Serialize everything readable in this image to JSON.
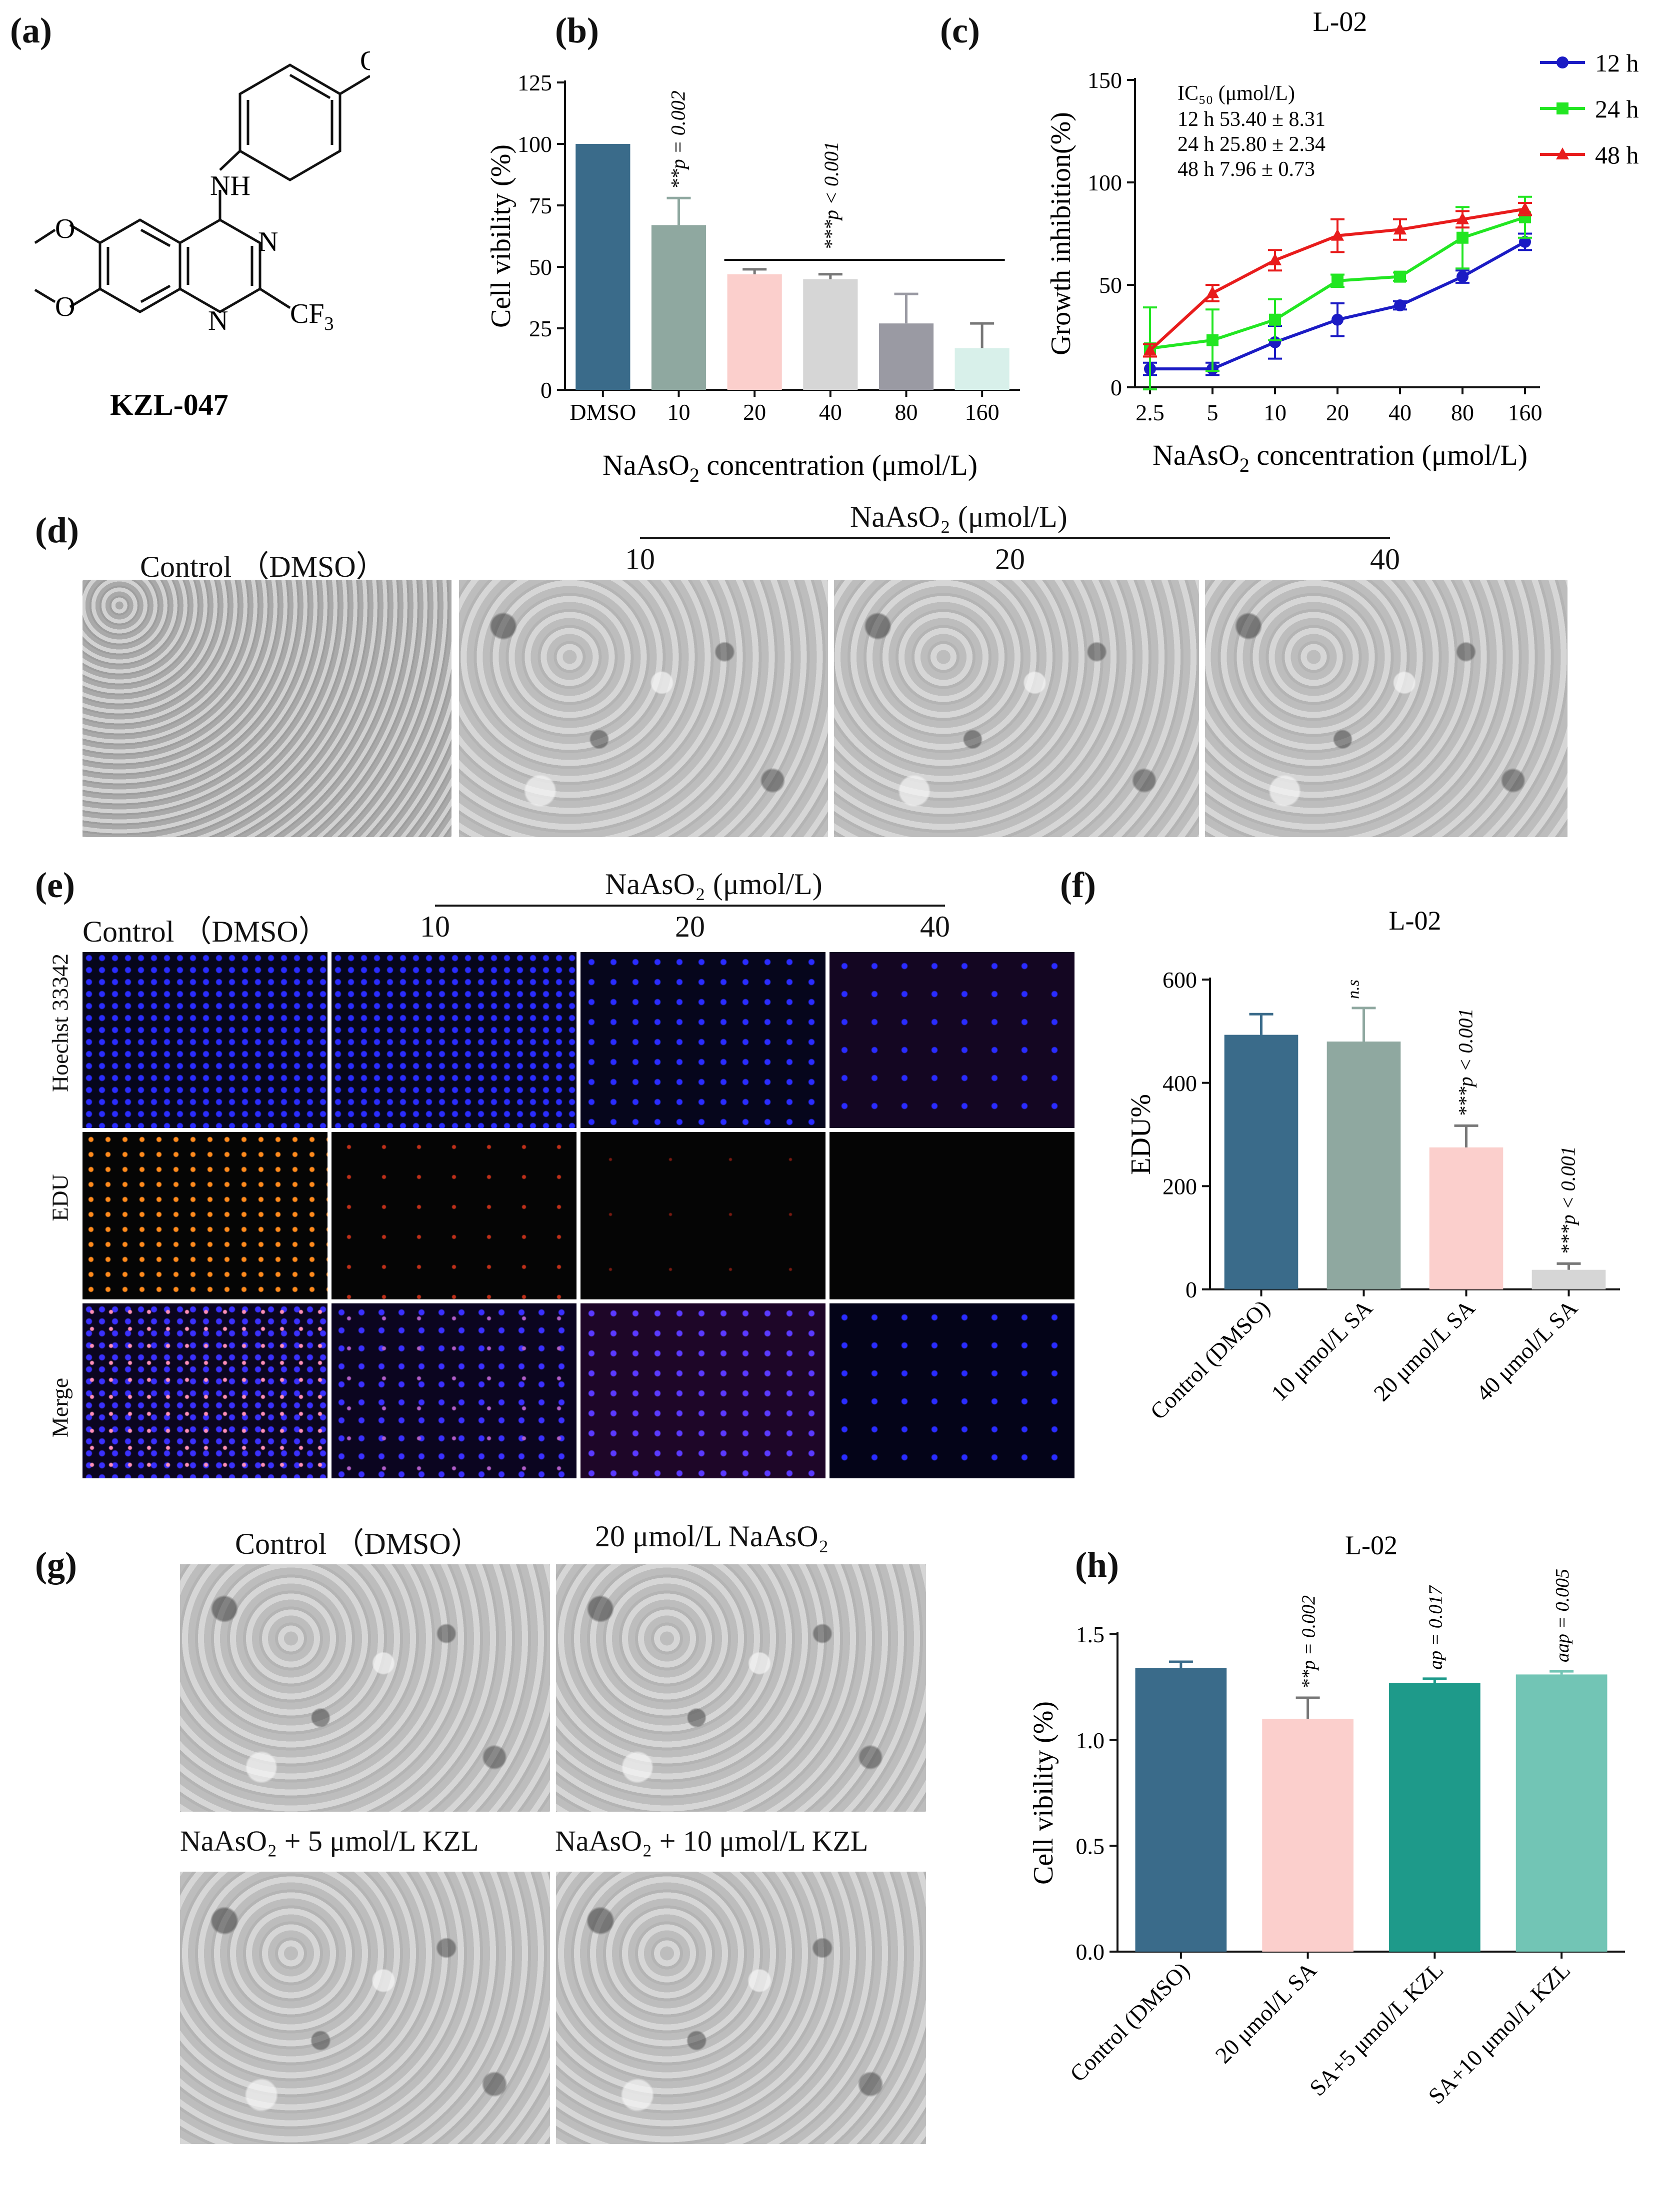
{
  "panels": {
    "a": {
      "label": "a",
      "compound": "KZL-047",
      "atoms": {
        "nh": "NH",
        "n1": "N",
        "n2": "N",
        "cf3": "CF",
        "cf3_sub": "3"
      }
    },
    "b": {
      "label": "b",
      "xlabel": "NaAsO",
      "xlabel_sub": "2",
      "xlabel_tail": " concentration (μmol/L)",
      "ylabel": "Cell vibility  (%)",
      "sig1": "**p = 0.002",
      "sig2": "***p < 0.001"
    },
    "c": {
      "label": "c",
      "title": "L-02",
      "xlabel": "NaAsO",
      "xlabel_sub": "2",
      "xlabel_tail": " concentration (μmol/L)",
      "ylabel": "Growth inhibition(%)",
      "ic50_title": "IC₅₀ (μmol/L)",
      "ic50_lines": [
        "12 h 53.40 ± 8.31",
        "24 h 25.80 ± 2.34",
        "48 h 7.96 ± 0.73"
      ]
    },
    "d": {
      "label": "d",
      "control": "Control  （DMSO）",
      "treat_title": "NaAsO₂ (μmol/L)",
      "doses": [
        "10",
        "20",
        "40"
      ]
    },
    "e": {
      "label": "e",
      "control": "Control  （DMSO）",
      "treat_title": "NaAsO₂ (μmol/L)",
      "doses": [
        "10",
        "20",
        "40"
      ],
      "rows": [
        "Hoechst 33342",
        "EDU",
        "Merge"
      ]
    },
    "f": {
      "label": "f",
      "title": "L-02",
      "ylabel": "EDU%",
      "sig1": "n.s",
      "sig2": "***p < 0.001",
      "sig3": "***p < 0.001"
    },
    "g": {
      "label": "g",
      "captions": [
        "Control  （DMSO）",
        "20 μmol/L NaAsO₂",
        "NaAsO₂ + 5 μmol/L KZL",
        "NaAsO₂ + 10 μmol/L KZL"
      ]
    },
    "h": {
      "label": "h",
      "title": "L-02",
      "ylabel": "Cell vibility  (%)",
      "sig1": "**p = 0.002",
      "sig2": "ap = 0.017",
      "sig3": "aap = 0.005"
    }
  },
  "chart_data": [
    {
      "id": "b",
      "type": "bar",
      "categories": [
        "DMSO",
        "10",
        "20",
        "40",
        "80",
        "160"
      ],
      "values": [
        100,
        67,
        47,
        45,
        27,
        17
      ],
      "errors": [
        0,
        11,
        2,
        2,
        12,
        10
      ],
      "ylim": [
        0,
        125
      ],
      "yticks": [
        0,
        25,
        50,
        75,
        100,
        125
      ],
      "colors": [
        "#3a6b8a",
        "#8fa8a0",
        "#fbcfcc",
        "#d6d6d6",
        "#9a9aa3",
        "#d8f0ea"
      ]
    },
    {
      "id": "c",
      "type": "line",
      "x": [
        "2.5",
        "5",
        "10",
        "20",
        "40",
        "80",
        "160"
      ],
      "ylim": [
        0,
        150
      ],
      "yticks": [
        0,
        50,
        100,
        150
      ],
      "series": [
        {
          "name": "12 h",
          "color": "#1b1bc4",
          "marker": "circle",
          "values": [
            9,
            9,
            22,
            33,
            40,
            54,
            71
          ],
          "errors": [
            3,
            3,
            8,
            8,
            2,
            3,
            4
          ]
        },
        {
          "name": "24 h",
          "color": "#22e622",
          "marker": "square",
          "values": [
            19,
            23,
            33,
            52,
            54,
            73,
            83
          ],
          "errors": [
            20,
            15,
            10,
            3,
            2,
            15,
            10
          ]
        },
        {
          "name": "48 h",
          "color": "#e81c1c",
          "marker": "triangle",
          "values": [
            18,
            46,
            62,
            74,
            77,
            82,
            87
          ],
          "errors": [
            3,
            4,
            5,
            8,
            5,
            4,
            3
          ]
        }
      ]
    },
    {
      "id": "f",
      "type": "bar",
      "categories": [
        "Control (DMSO)",
        "10 μmol/L SA",
        "20 μmol/L SA",
        "40 μmol/L SA"
      ],
      "values": [
        493,
        480,
        275,
        38
      ],
      "errors": [
        40,
        65,
        42,
        12
      ],
      "ylim": [
        0,
        600
      ],
      "yticks": [
        0,
        200,
        400,
        600
      ],
      "colors": [
        "#3a6b8a",
        "#8fa8a0",
        "#fbcfcc",
        "#d6d6d6"
      ]
    },
    {
      "id": "h",
      "type": "bar",
      "categories": [
        "Control (DMSO)",
        "20 μmol/L SA",
        "SA+5 μmol/L KZL",
        "SA+10 μmol/L KZL"
      ],
      "values": [
        1.34,
        1.1,
        1.27,
        1.31
      ],
      "errors": [
        0.03,
        0.1,
        0.02,
        0.015
      ],
      "ylim": [
        0,
        1.5
      ],
      "yticks": [
        "0.0",
        "0.5",
        "1.0",
        "1.5"
      ],
      "colors": [
        "#3a6b8a",
        "#fbcfcc",
        "#1e9a8a",
        "#72c5b5"
      ]
    }
  ]
}
